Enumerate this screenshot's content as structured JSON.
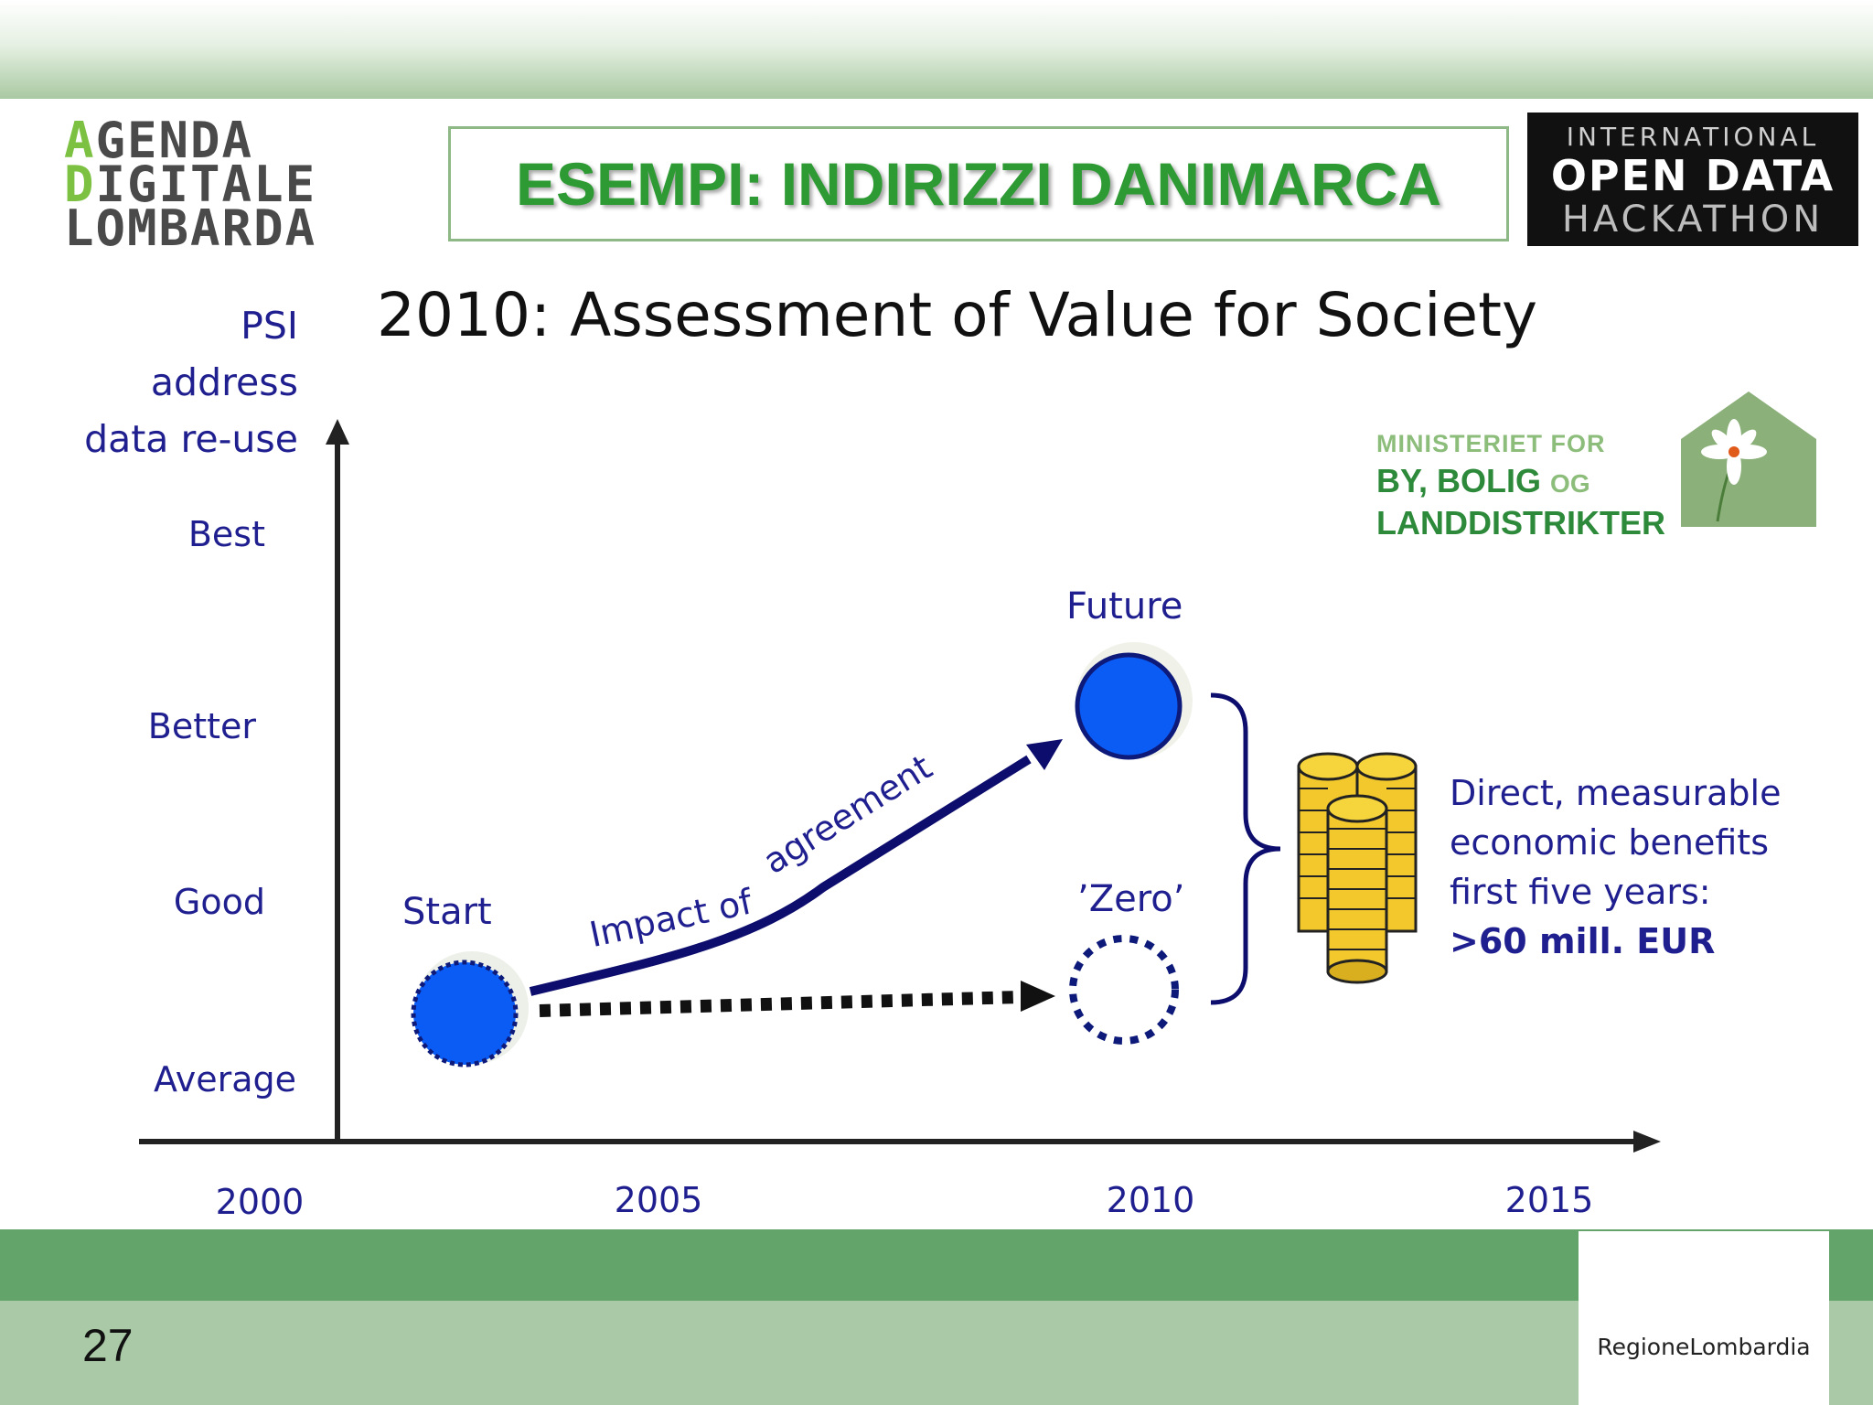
{
  "header": {
    "logo_left": {
      "line1_first": "A",
      "line1_rest": "GENDA",
      "line2_first": "D",
      "line2_rest": "IGITALE",
      "line3": "LOMBARDA"
    },
    "title": "ESEMPI: INDIRIZZI DANIMARCA",
    "logo_right": {
      "line1": "INTERNATIONAL",
      "line2": "OPEN DATA",
      "line3": "HACKATHON"
    }
  },
  "diagram": {
    "subtitle": "2010: Assessment of Value for Society",
    "y_axis_label": [
      "PSI",
      "address",
      "data re-use"
    ],
    "y_levels": [
      "Best",
      "Better",
      "Good",
      "Average"
    ],
    "x_ticks": [
      "2000",
      "2005",
      "2010",
      "2015"
    ],
    "nodes": {
      "start": "Start",
      "future": "Future",
      "zero": "’Zero’"
    },
    "arrow_label": "Impact of    agreement",
    "benefits": [
      "Direct, measurable",
      "economic benefits",
      "first five years:",
      ">60 mill. EUR"
    ],
    "colors": {
      "node_fill": "#0a5cf5",
      "node_stroke": "#0d1a7a",
      "arrow": "#0d0d6e",
      "axis": "#222222"
    },
    "icons": [
      "coin-stack-icon",
      "flower-house-icon"
    ]
  },
  "ministry_logo": {
    "line1": "MINISTERIET FOR",
    "line2": "BY, BOLIG",
    "line2_small": "OG",
    "line3": "LANDDISTRIKTER"
  },
  "footer": {
    "page_number": "27",
    "brand": "RegioneLombardia"
  }
}
